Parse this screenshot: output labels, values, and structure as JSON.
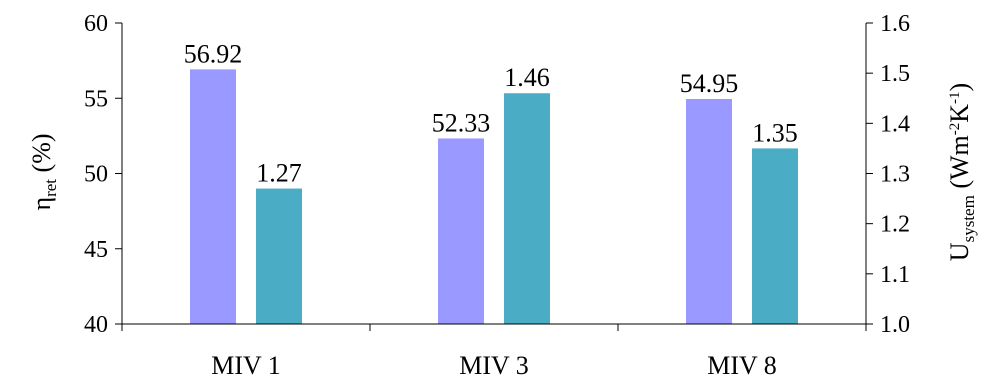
{
  "chart_data": {
    "type": "bar",
    "categories": [
      "MIV 1",
      "MIV 3",
      "MIV 8"
    ],
    "series": [
      {
        "values": [
          56.92,
          52.33,
          54.95
        ],
        "labels": [
          "56.92",
          "52.33",
          "54.95"
        ],
        "axis": "left",
        "color": "#9999FF"
      },
      {
        "values": [
          1.27,
          1.46,
          1.35
        ],
        "labels": [
          "1.27",
          "1.46",
          "1.35"
        ],
        "axis": "right",
        "color": "#4BACC6"
      }
    ],
    "y_left": {
      "label_main": "η",
      "label_sub": "ret",
      "label_tail": " (%)",
      "ylim": [
        40,
        60
      ],
      "ticks": [
        "40",
        "45",
        "50",
        "55",
        "60"
      ]
    },
    "y_right": {
      "label_main": "U",
      "label_sub": "system",
      "label_tail_1": " (Wm",
      "label_sup_1": "-2",
      "label_tail_2": "K",
      "label_sup_2": "-1",
      "label_tail_3": ")",
      "ylim": [
        1.0,
        1.6
      ],
      "ticks": [
        "1.0",
        "1.1",
        "1.2",
        "1.3",
        "1.4",
        "1.5",
        "1.6"
      ]
    },
    "grid": false,
    "legend": "none"
  }
}
